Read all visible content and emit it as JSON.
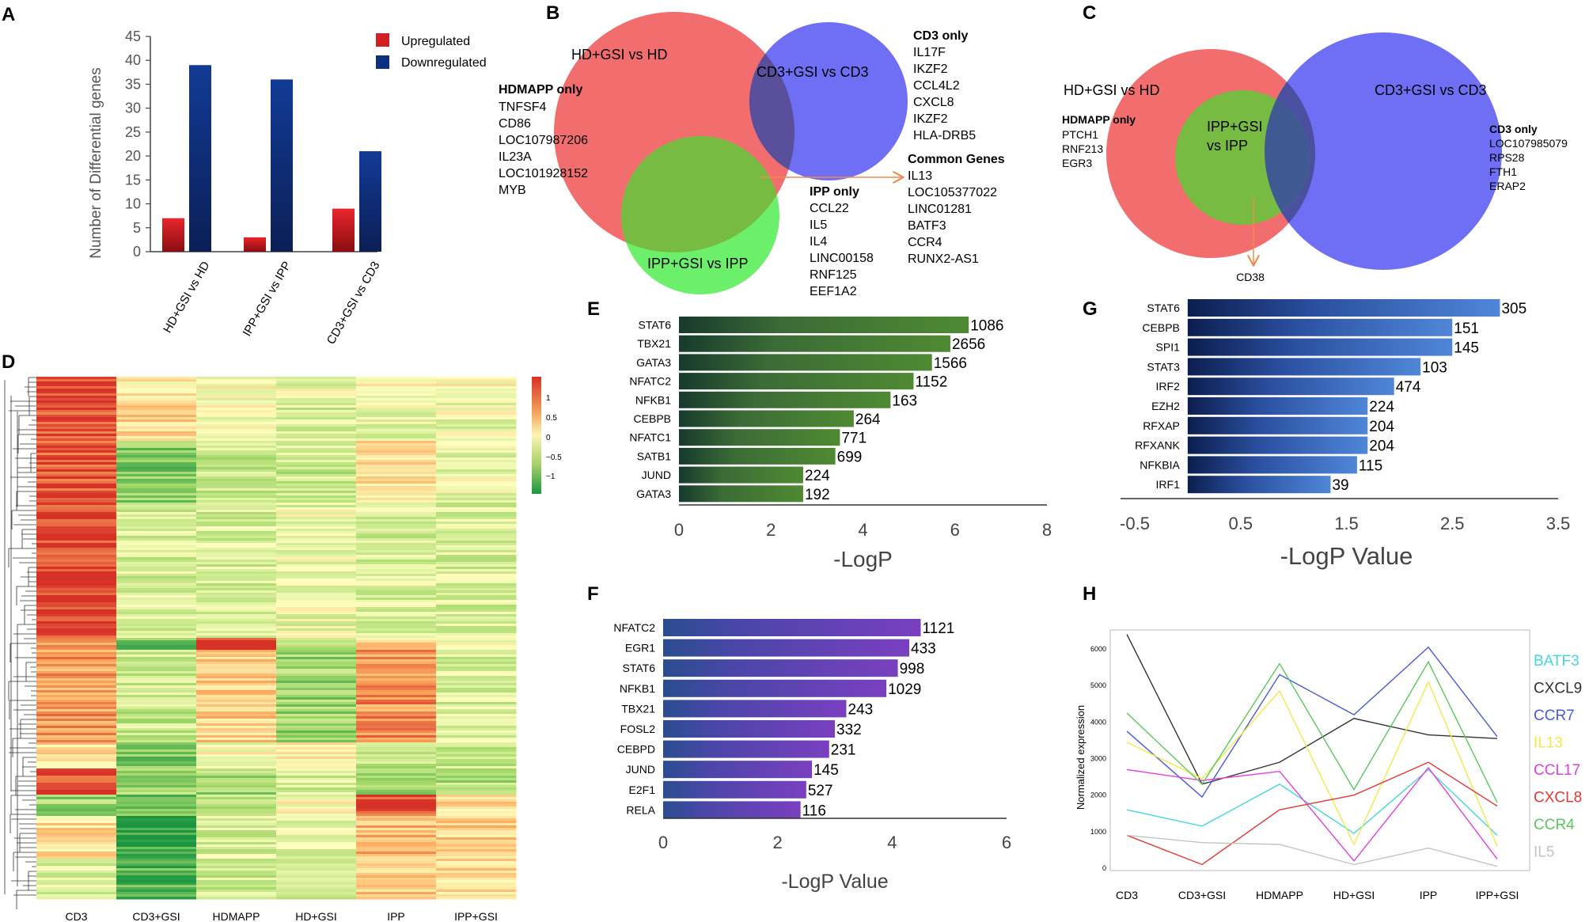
{
  "colors": {
    "up": "#d21f26",
    "down": "#0f2f7f",
    "venn_red": "#f26d6d",
    "venn_blue": "#6f6ff5",
    "venn_green": "#6cf06c",
    "venn_overlap": "#77bb43",
    "arrow": "#f08a4b",
    "e_bar": "#3d6a33",
    "f_bar": "#6b3db0",
    "g_bar": "#2f5bb5"
  },
  "panel_labels": [
    "A",
    "B",
    "C",
    "D",
    "E",
    "F",
    "G",
    "H"
  ],
  "chart_data": [
    {
      "id": "A",
      "type": "bar",
      "categories": [
        "HD+GSI vs HD",
        "IPP+GSI vs IPP",
        "CD3+GSI vs CD3"
      ],
      "series": [
        {
          "name": "Upregulated",
          "values": [
            7,
            3,
            9
          ]
        },
        {
          "name": "Downregulated",
          "values": [
            39,
            36,
            21
          ]
        }
      ],
      "ylabel": "Number of Differential genes",
      "yticks": [
        0,
        5,
        10,
        15,
        20,
        25,
        30,
        35,
        40,
        45
      ],
      "ylim": [
        0,
        45
      ],
      "legend": [
        "Upregulated",
        "Downregulated"
      ]
    },
    {
      "id": "E",
      "type": "bar",
      "orientation": "horizontal",
      "categories": [
        "STAT6",
        "TBX21",
        "GATA3",
        "NFATC2",
        "NFKB1",
        "CEBPB",
        "NFATC1",
        "SATB1",
        "JUND",
        "GATA3"
      ],
      "values": [
        6.3,
        5.9,
        5.5,
        5.1,
        4.6,
        3.8,
        3.5,
        3.4,
        2.7,
        2.7
      ],
      "labels": [
        "1086",
        "2656",
        "1566",
        "1152",
        "163",
        "264",
        "771",
        "699",
        "224",
        "192"
      ],
      "xlim": [
        0,
        8
      ],
      "xticks": [
        "0",
        "2",
        "4",
        "6",
        "8"
      ],
      "xlabel": "-LogP"
    },
    {
      "id": "F",
      "type": "bar",
      "orientation": "horizontal",
      "categories": [
        "NFATC2",
        "EGR1",
        "STAT6",
        "NFKB1",
        "TBX21",
        "FOSL2",
        "CEBPD",
        "JUND",
        "E2F1",
        "RELA"
      ],
      "values": [
        4.5,
        4.3,
        4.1,
        3.9,
        3.2,
        3.0,
        2.9,
        2.6,
        2.5,
        2.4
      ],
      "labels": [
        "1121",
        "433",
        "998",
        "1029",
        "243",
        "332",
        "231",
        "145",
        "527",
        "116"
      ],
      "xlim": [
        0,
        6
      ],
      "xticks": [
        "0",
        "2",
        "4",
        "6"
      ],
      "xlabel": "-LogP Value"
    },
    {
      "id": "G",
      "type": "bar",
      "orientation": "horizontal",
      "categories": [
        "STAT6",
        "CEBPB",
        "SPI1",
        "STAT3",
        "IRF2",
        "EZH2",
        "RFXAP",
        "RFXANK",
        "NFKBIA",
        "IRF1"
      ],
      "values": [
        2.95,
        2.5,
        2.5,
        2.2,
        1.95,
        1.7,
        1.7,
        1.7,
        1.6,
        1.35
      ],
      "labels": [
        "305",
        "151",
        "145",
        "103",
        "474",
        "224",
        "204",
        "204",
        "115",
        "39"
      ],
      "xlim": [
        -0.5,
        3.5
      ],
      "xticks": [
        "-0.5",
        "0.5",
        "1.5",
        "2.5",
        "3.5"
      ],
      "xlabel": "-LogP Value"
    },
    {
      "id": "H",
      "type": "line",
      "categories": [
        "CD3",
        "CD3+GSI",
        "HDMAPP",
        "HD+GSI",
        "IPP",
        "IPP+GSI"
      ],
      "ylabel": "Normalized expression",
      "yticks": [
        "0",
        "1000",
        "2000",
        "3000",
        "4000",
        "5000",
        "6000"
      ],
      "ylim": [
        0,
        6500
      ],
      "series": [
        {
          "name": "BATF3",
          "color": "#44d7dc",
          "values": [
            1600,
            1150,
            2300,
            950,
            2700,
            900
          ]
        },
        {
          "name": "CXCL9",
          "color": "#333333",
          "values": [
            6400,
            2300,
            2900,
            4100,
            3650,
            3550
          ]
        },
        {
          "name": "CCR7",
          "color": "#4a5ad8",
          "values": [
            3750,
            1950,
            5300,
            4200,
            6050,
            3600
          ]
        },
        {
          "name": "IL13",
          "color": "#f2e84a",
          "values": [
            3450,
            2450,
            4850,
            650,
            5100,
            600
          ]
        },
        {
          "name": "CCL17",
          "color": "#e040e0",
          "values": [
            2700,
            2400,
            2650,
            200,
            2750,
            250
          ]
        },
        {
          "name": "CXCL8",
          "color": "#e53935",
          "values": [
            900,
            100,
            1600,
            2000,
            2900,
            1700
          ]
        },
        {
          "name": "CCR4",
          "color": "#5ac85a",
          "values": [
            4250,
            2300,
            5600,
            2150,
            5650,
            1800
          ]
        },
        {
          "name": "IL5",
          "color": "#c4c4c4",
          "values": [
            900,
            700,
            650,
            100,
            550,
            50
          ]
        }
      ]
    }
  ],
  "venn_b": {
    "sets": [
      "HD+GSI vs HD",
      "CD3+GSI vs CD3",
      "IPP+GSI vs IPP"
    ],
    "hdmapp_title": "HDMAPP only",
    "hdmapp_genes": [
      "TNFSF4",
      "CD86",
      "LOC107987206",
      "IL23A",
      "LOC101928152",
      "MYB"
    ],
    "cd3_title": "CD3 only",
    "cd3_genes": [
      "IL17F",
      "IKZF2",
      "CCL4L2",
      "CXCL8",
      "IKZF2",
      "HLA-DRB5"
    ],
    "ipp_title": "IPP only",
    "ipp_genes": [
      "CCL22",
      "IL5",
      "IL4",
      "LINC00158",
      "RNF125",
      "EEF1A2"
    ],
    "common_title": "Common Genes",
    "common_genes": [
      "IL13",
      "LOC105377022",
      "LINC01281",
      "BATF3",
      "CCR4",
      "RUNX2-AS1"
    ]
  },
  "venn_c": {
    "sets": [
      "HD+GSI vs HD",
      "CD3+GSI vs CD3",
      "IPP+GSI",
      "vs IPP"
    ],
    "hdmapp_title": "HDMAPP only",
    "hdmapp_genes": [
      "PTCH1",
      "RNF213",
      "EGR3"
    ],
    "cd3_title": "CD3 only",
    "cd3_genes": [
      "LOC107985079",
      "RPS28",
      "FTH1",
      "ERAP2"
    ],
    "common_gene": "CD38"
  },
  "heatmap": {
    "columns": [
      "CD3",
      "CD3+GSI",
      "HDMAPP",
      "HD+GSI",
      "IPP",
      "IPP+GSI"
    ],
    "scale_ticks": [
      "1",
      "0.5",
      "0",
      "−0.5",
      "−1"
    ]
  }
}
